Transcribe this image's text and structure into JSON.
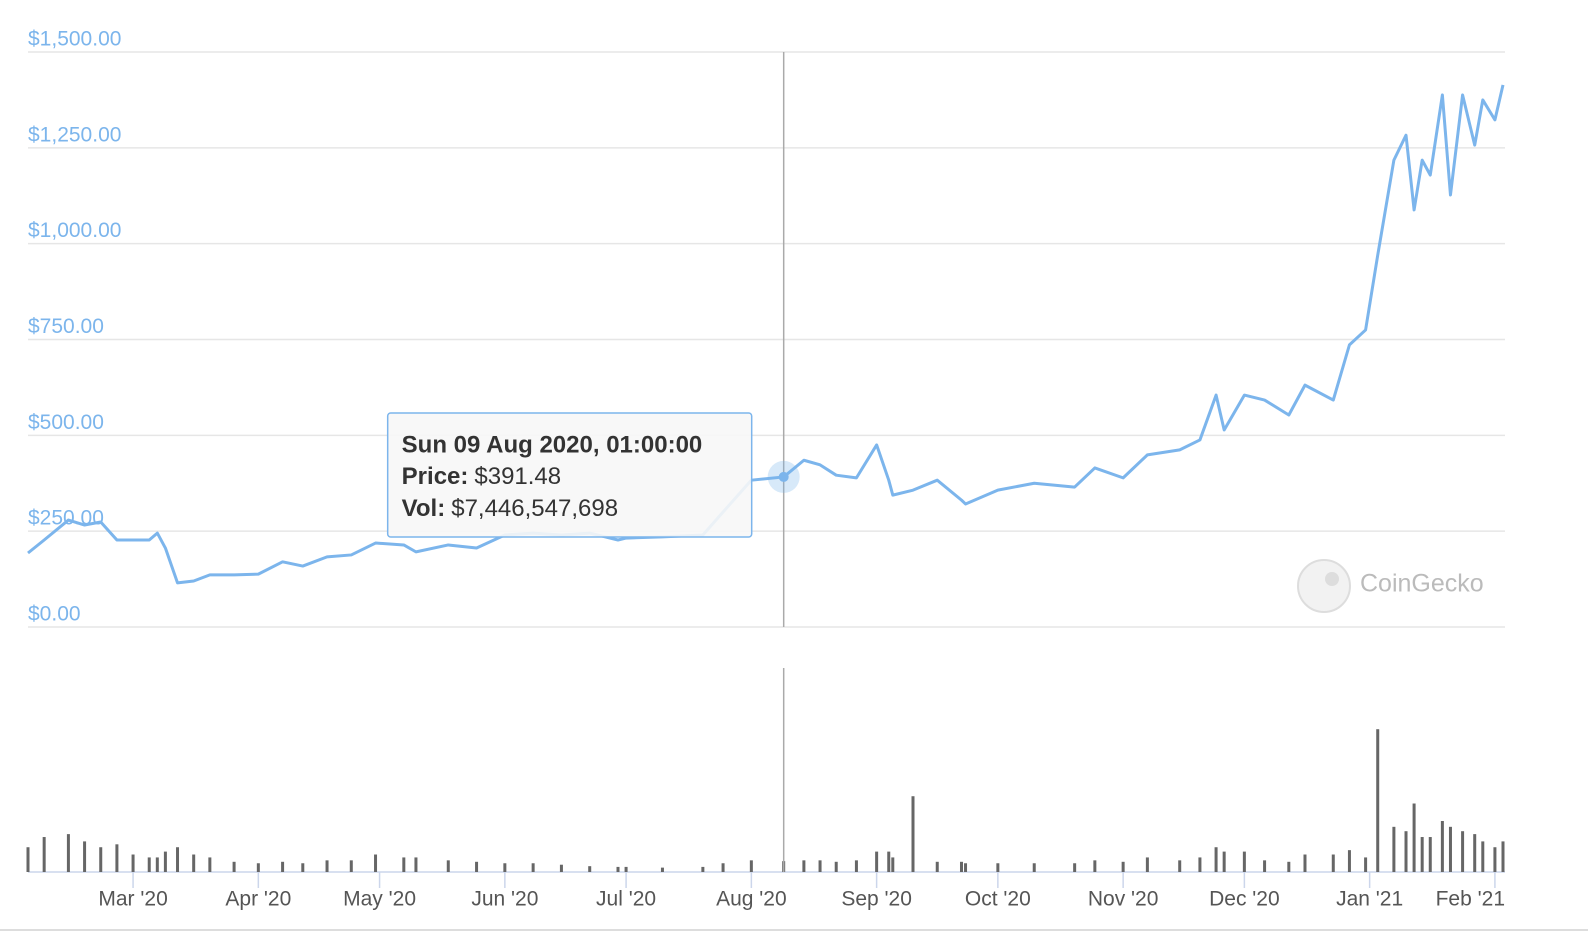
{
  "chart_data": {
    "type": "line",
    "x": [
      "2020-02-04",
      "2020-02-08",
      "2020-02-14",
      "2020-02-18",
      "2020-02-22",
      "2020-02-26",
      "2020-03-01",
      "2020-03-05",
      "2020-03-07",
      "2020-03-09",
      "2020-03-12",
      "2020-03-16",
      "2020-03-20",
      "2020-03-26",
      "2020-04-01",
      "2020-04-07",
      "2020-04-12",
      "2020-04-18",
      "2020-04-24",
      "2020-04-30",
      "2020-05-07",
      "2020-05-10",
      "2020-05-18",
      "2020-05-25",
      "2020-06-01",
      "2020-06-08",
      "2020-06-15",
      "2020-06-22",
      "2020-06-29",
      "2020-07-01",
      "2020-07-10",
      "2020-07-20",
      "2020-07-25",
      "2020-08-01",
      "2020-08-09",
      "2020-08-14",
      "2020-08-18",
      "2020-08-22",
      "2020-08-27",
      "2020-09-01",
      "2020-09-04",
      "2020-09-05",
      "2020-09-10",
      "2020-09-16",
      "2020-09-22",
      "2020-09-23",
      "2020-10-01",
      "2020-10-10",
      "2020-10-20",
      "2020-10-25",
      "2020-11-01",
      "2020-11-07",
      "2020-11-15",
      "2020-11-20",
      "2020-11-24",
      "2020-11-26",
      "2020-12-01",
      "2020-12-06",
      "2020-12-12",
      "2020-12-16",
      "2020-12-23",
      "2020-12-27",
      "2020-12-31",
      "2021-01-03",
      "2021-01-07",
      "2021-01-10",
      "2021-01-12",
      "2021-01-14",
      "2021-01-16",
      "2021-01-19",
      "2021-01-21",
      "2021-01-24",
      "2021-01-27",
      "2021-01-29",
      "2021-02-01",
      "2021-02-03"
    ],
    "series": [
      {
        "name": "Price:",
        "color": "#7cb5ec",
        "values": [
          193,
          227,
          279,
          266,
          274,
          227,
          227,
          227,
          245,
          206,
          115,
          120,
          136,
          136,
          138,
          170,
          159,
          183,
          188,
          219,
          214,
          196,
          214,
          206,
          240,
          245,
          240,
          245,
          227,
          232,
          235,
          240,
          300,
          383,
          391.48,
          435,
          423,
          396,
          389,
          475,
          383,
          344,
          357,
          383,
          331,
          321,
          357,
          375,
          365,
          415,
          389,
          449,
          462,
          488,
          605,
          514,
          605,
          592,
          553,
          631,
          592,
          736,
          775,
          970,
          1218,
          1283,
          1088,
          1218,
          1179,
          1388,
          1127,
          1388,
          1257,
          1375,
          1323,
          1414
        ],
        "value_labels": [
          null,
          null,
          null,
          null,
          null,
          null,
          null,
          null,
          null,
          null,
          null,
          null,
          null,
          null,
          null,
          null,
          null,
          null,
          null,
          null,
          null,
          null,
          null,
          null,
          null,
          null,
          null,
          null,
          null,
          null,
          null,
          null,
          null,
          null,
          "$391.48",
          null,
          null,
          null,
          null,
          null,
          null,
          null,
          null,
          null,
          null,
          null,
          null,
          null,
          null,
          null,
          null,
          null,
          null,
          null,
          null,
          null,
          null,
          null,
          null,
          null,
          null,
          null,
          null,
          null,
          null,
          null,
          null,
          null,
          null,
          null,
          null,
          null,
          null,
          null,
          null,
          null
        ]
      },
      {
        "name": "Vol:",
        "color": "#666666",
        "axis": "y2",
        "values": [
          17000000000,
          24000000000,
          26000000000,
          21000000000,
          17000000000,
          19000000000,
          12000000000,
          10000000000,
          10000000000,
          14000000000,
          17000000000,
          12000000000,
          10000000000,
          7000000000,
          6000000000,
          7000000000,
          6000000000,
          8000000000,
          8000000000,
          12000000000,
          10000000000,
          10000000000,
          8000000000,
          7000000000,
          6000000000,
          6000000000,
          5000000000,
          4000000000,
          3500000000,
          3500000000,
          3000000000,
          3500000000,
          6000000000,
          8000000000,
          7446547698,
          8000000000,
          8000000000,
          7000000000,
          8000000000,
          14000000000,
          14000000000,
          10000000000,
          52000000000,
          7000000000,
          7000000000,
          6000000000,
          6000000000,
          6000000000,
          6000000000,
          8000000000,
          7000000000,
          10000000000,
          8000000000,
          10000000000,
          17000000000,
          14000000000,
          14000000000,
          8000000000,
          7000000000,
          12000000000,
          12000000000,
          15000000000,
          10000000000,
          98000000000,
          31000000000,
          28000000000,
          47000000000,
          24000000000,
          24000000000,
          35000000000,
          31000000000,
          28000000000,
          26000000000,
          21000000000,
          17000000000,
          21000000000
        ],
        "value_labels": [
          null,
          null,
          null,
          null,
          null,
          null,
          null,
          null,
          null,
          null,
          null,
          null,
          null,
          null,
          null,
          null,
          null,
          null,
          null,
          null,
          null,
          null,
          null,
          null,
          null,
          null,
          null,
          null,
          null,
          null,
          null,
          null,
          null,
          null,
          "$7,446,547,698",
          null,
          null,
          null,
          null,
          null,
          null,
          null,
          null,
          null,
          null,
          null,
          null,
          null,
          null,
          null,
          null,
          null,
          null,
          null,
          null,
          null,
          null,
          null,
          null,
          null,
          null,
          null,
          null,
          null,
          null,
          null,
          null,
          null,
          null,
          null,
          null,
          null,
          null,
          null,
          null,
          null
        ]
      }
    ],
    "xlim": [
      "2020-02-04",
      "2021-02-03"
    ],
    "xticks": [
      {
        "value": "2020-03-01",
        "label": "Mar '20"
      },
      {
        "value": "2020-04-01",
        "label": "Apr '20"
      },
      {
        "value": "2020-05-01",
        "label": "May '20"
      },
      {
        "value": "2020-06-01",
        "label": "Jun '20"
      },
      {
        "value": "2020-07-01",
        "label": "Jul '20"
      },
      {
        "value": "2020-08-01",
        "label": "Aug '20"
      },
      {
        "value": "2020-09-01",
        "label": "Sep '20"
      },
      {
        "value": "2020-10-01",
        "label": "Oct '20"
      },
      {
        "value": "2020-11-01",
        "label": "Nov '20"
      },
      {
        "value": "2020-12-01",
        "label": "Dec '20"
      },
      {
        "value": "2021-01-01",
        "label": "Jan '21"
      },
      {
        "value": "2021-02-01",
        "label": "Feb '21"
      }
    ],
    "ylim": [
      0,
      1500
    ],
    "yticks": [
      {
        "value": 0,
        "label": "$0.00"
      },
      {
        "value": 250,
        "label": "$250.00"
      },
      {
        "value": 500,
        "label": "$500.00"
      },
      {
        "value": 750,
        "label": "$750.00"
      },
      {
        "value": 1000,
        "label": "$1,000.00"
      },
      {
        "value": 1250,
        "label": "$1,250.00"
      },
      {
        "value": 1500,
        "label": "$1,500.00"
      }
    ],
    "y2lim": [
      0,
      140000000000
    ],
    "grid": true,
    "tooltip": {
      "title": "Sun 09 Aug 2020, 01:00:00"
    },
    "watermark": "CoinGecko"
  }
}
